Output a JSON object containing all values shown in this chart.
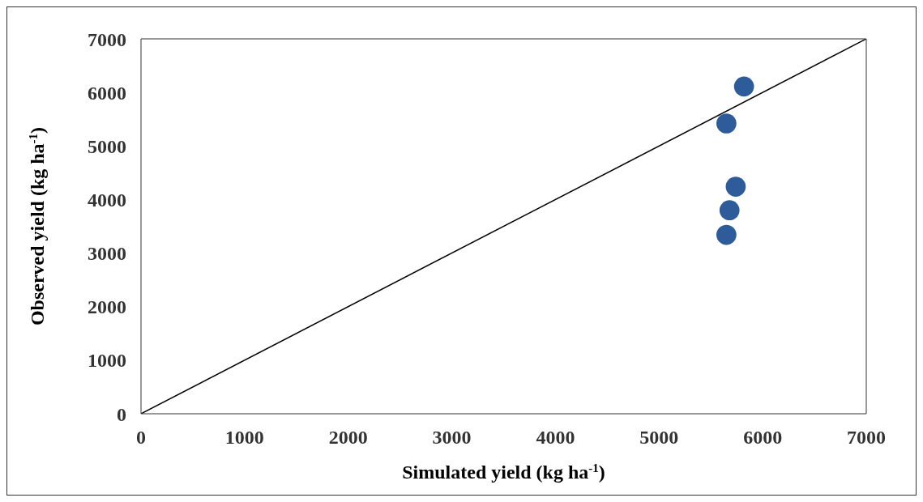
{
  "chart_data": {
    "type": "scatter",
    "xlabel": "Simulated yield (kg ha$^{-1}$)",
    "ylabel": "Observed yield (kg ha$^{-1}$)",
    "xlim": [
      0,
      7000
    ],
    "xticks": [
      0,
      1000,
      2000,
      3000,
      4000,
      5000,
      6000,
      7000
    ],
    "ylim": [
      0,
      7000
    ],
    "yticks": [
      0,
      1000,
      2000,
      3000,
      4000,
      5000,
      6000,
      7000
    ],
    "grid": false,
    "marker": "circle",
    "series": [
      {
        "color": "#2e5c9a",
        "x": [
          5820,
          5650,
          5740,
          5680,
          5650
        ],
        "values": [
          6110,
          5420,
          4240,
          3800,
          3340
        ]
      },
      {
        "type": "line",
        "color": "#000000",
        "x": [
          0,
          7000
        ],
        "values": [
          0,
          7000
        ],
        "marker": "none",
        "line_style": "solid"
      }
    ]
  }
}
